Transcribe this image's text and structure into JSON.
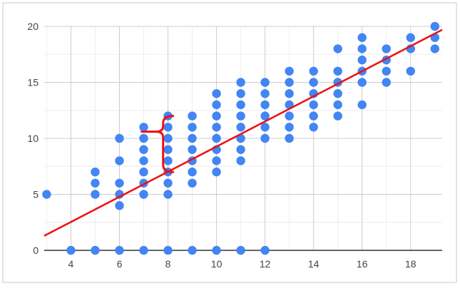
{
  "chart_data": {
    "type": "scatter",
    "title": "",
    "xlabel": "",
    "ylabel": "",
    "xlim": [
      2.9,
      19.3
    ],
    "ylim": [
      0,
      20
    ],
    "x_ticks": [
      4,
      6,
      8,
      10,
      12,
      14,
      16,
      18
    ],
    "y_ticks": [
      0,
      5,
      10,
      15,
      20
    ],
    "x_tick_labels": [
      "4",
      "6",
      "8",
      "10",
      "12",
      "14",
      "16",
      "18"
    ],
    "y_tick_labels": [
      "0",
      "5",
      "10",
      "15",
      "20"
    ],
    "grid": true,
    "legend": "none",
    "point_color": "#4285f4",
    "line_color": "#ee1111",
    "bracket_color": "#ee1111",
    "series": [
      {
        "points": [
          [
            3,
            5
          ],
          [
            4,
            0
          ],
          [
            5,
            0
          ],
          [
            5,
            5
          ],
          [
            5,
            6
          ],
          [
            5,
            7
          ],
          [
            6,
            0
          ],
          [
            6,
            4
          ],
          [
            6,
            5
          ],
          [
            6,
            6
          ],
          [
            6,
            8
          ],
          [
            6,
            10
          ],
          [
            7,
            0
          ],
          [
            7,
            5
          ],
          [
            7,
            6
          ],
          [
            7,
            7
          ],
          [
            7,
            8
          ],
          [
            7,
            9
          ],
          [
            7,
            10
          ],
          [
            7,
            11
          ],
          [
            8,
            0
          ],
          [
            8,
            5
          ],
          [
            8,
            6
          ],
          [
            8,
            7
          ],
          [
            8,
            8
          ],
          [
            8,
            9
          ],
          [
            8,
            10
          ],
          [
            8,
            11
          ],
          [
            8,
            12
          ],
          [
            9,
            0
          ],
          [
            9,
            6
          ],
          [
            9,
            7
          ],
          [
            9,
            8
          ],
          [
            9,
            9
          ],
          [
            9,
            10
          ],
          [
            9,
            11
          ],
          [
            9,
            12
          ],
          [
            10,
            0
          ],
          [
            10,
            7
          ],
          [
            10,
            8
          ],
          [
            10,
            9
          ],
          [
            10,
            10
          ],
          [
            10,
            11
          ],
          [
            10,
            12
          ],
          [
            10,
            13
          ],
          [
            10,
            14
          ],
          [
            11,
            0
          ],
          [
            11,
            8
          ],
          [
            11,
            9
          ],
          [
            11,
            10
          ],
          [
            11,
            11
          ],
          [
            11,
            12
          ],
          [
            11,
            13
          ],
          [
            11,
            14
          ],
          [
            11,
            15
          ],
          [
            12,
            0
          ],
          [
            12,
            10
          ],
          [
            12,
            11
          ],
          [
            12,
            12
          ],
          [
            12,
            13
          ],
          [
            12,
            14
          ],
          [
            12,
            15
          ],
          [
            13,
            10
          ],
          [
            13,
            11
          ],
          [
            13,
            12
          ],
          [
            13,
            13
          ],
          [
            13,
            14
          ],
          [
            13,
            15
          ],
          [
            13,
            16
          ],
          [
            14,
            11
          ],
          [
            14,
            12
          ],
          [
            14,
            13
          ],
          [
            14,
            14
          ],
          [
            14,
            15
          ],
          [
            14,
            16
          ],
          [
            15,
            12
          ],
          [
            15,
            13
          ],
          [
            15,
            14
          ],
          [
            15,
            15
          ],
          [
            15,
            16
          ],
          [
            15,
            18
          ],
          [
            16,
            13
          ],
          [
            16,
            15
          ],
          [
            16,
            16
          ],
          [
            16,
            17
          ],
          [
            16,
            18
          ],
          [
            16,
            19
          ],
          [
            17,
            15
          ],
          [
            17,
            16
          ],
          [
            17,
            17
          ],
          [
            17,
            18
          ],
          [
            18,
            16
          ],
          [
            18,
            18
          ],
          [
            18,
            19
          ],
          [
            19,
            18
          ],
          [
            19,
            19
          ],
          [
            19,
            20
          ]
        ]
      }
    ],
    "trendline": {
      "x": [
        2.9,
        19.3
      ],
      "y": [
        1.3,
        19.7
      ]
    },
    "annotation": {
      "type": "brace",
      "x": 7.8,
      "y_from": 7,
      "y_to": 12,
      "pointer_y": 10.6
    }
  }
}
